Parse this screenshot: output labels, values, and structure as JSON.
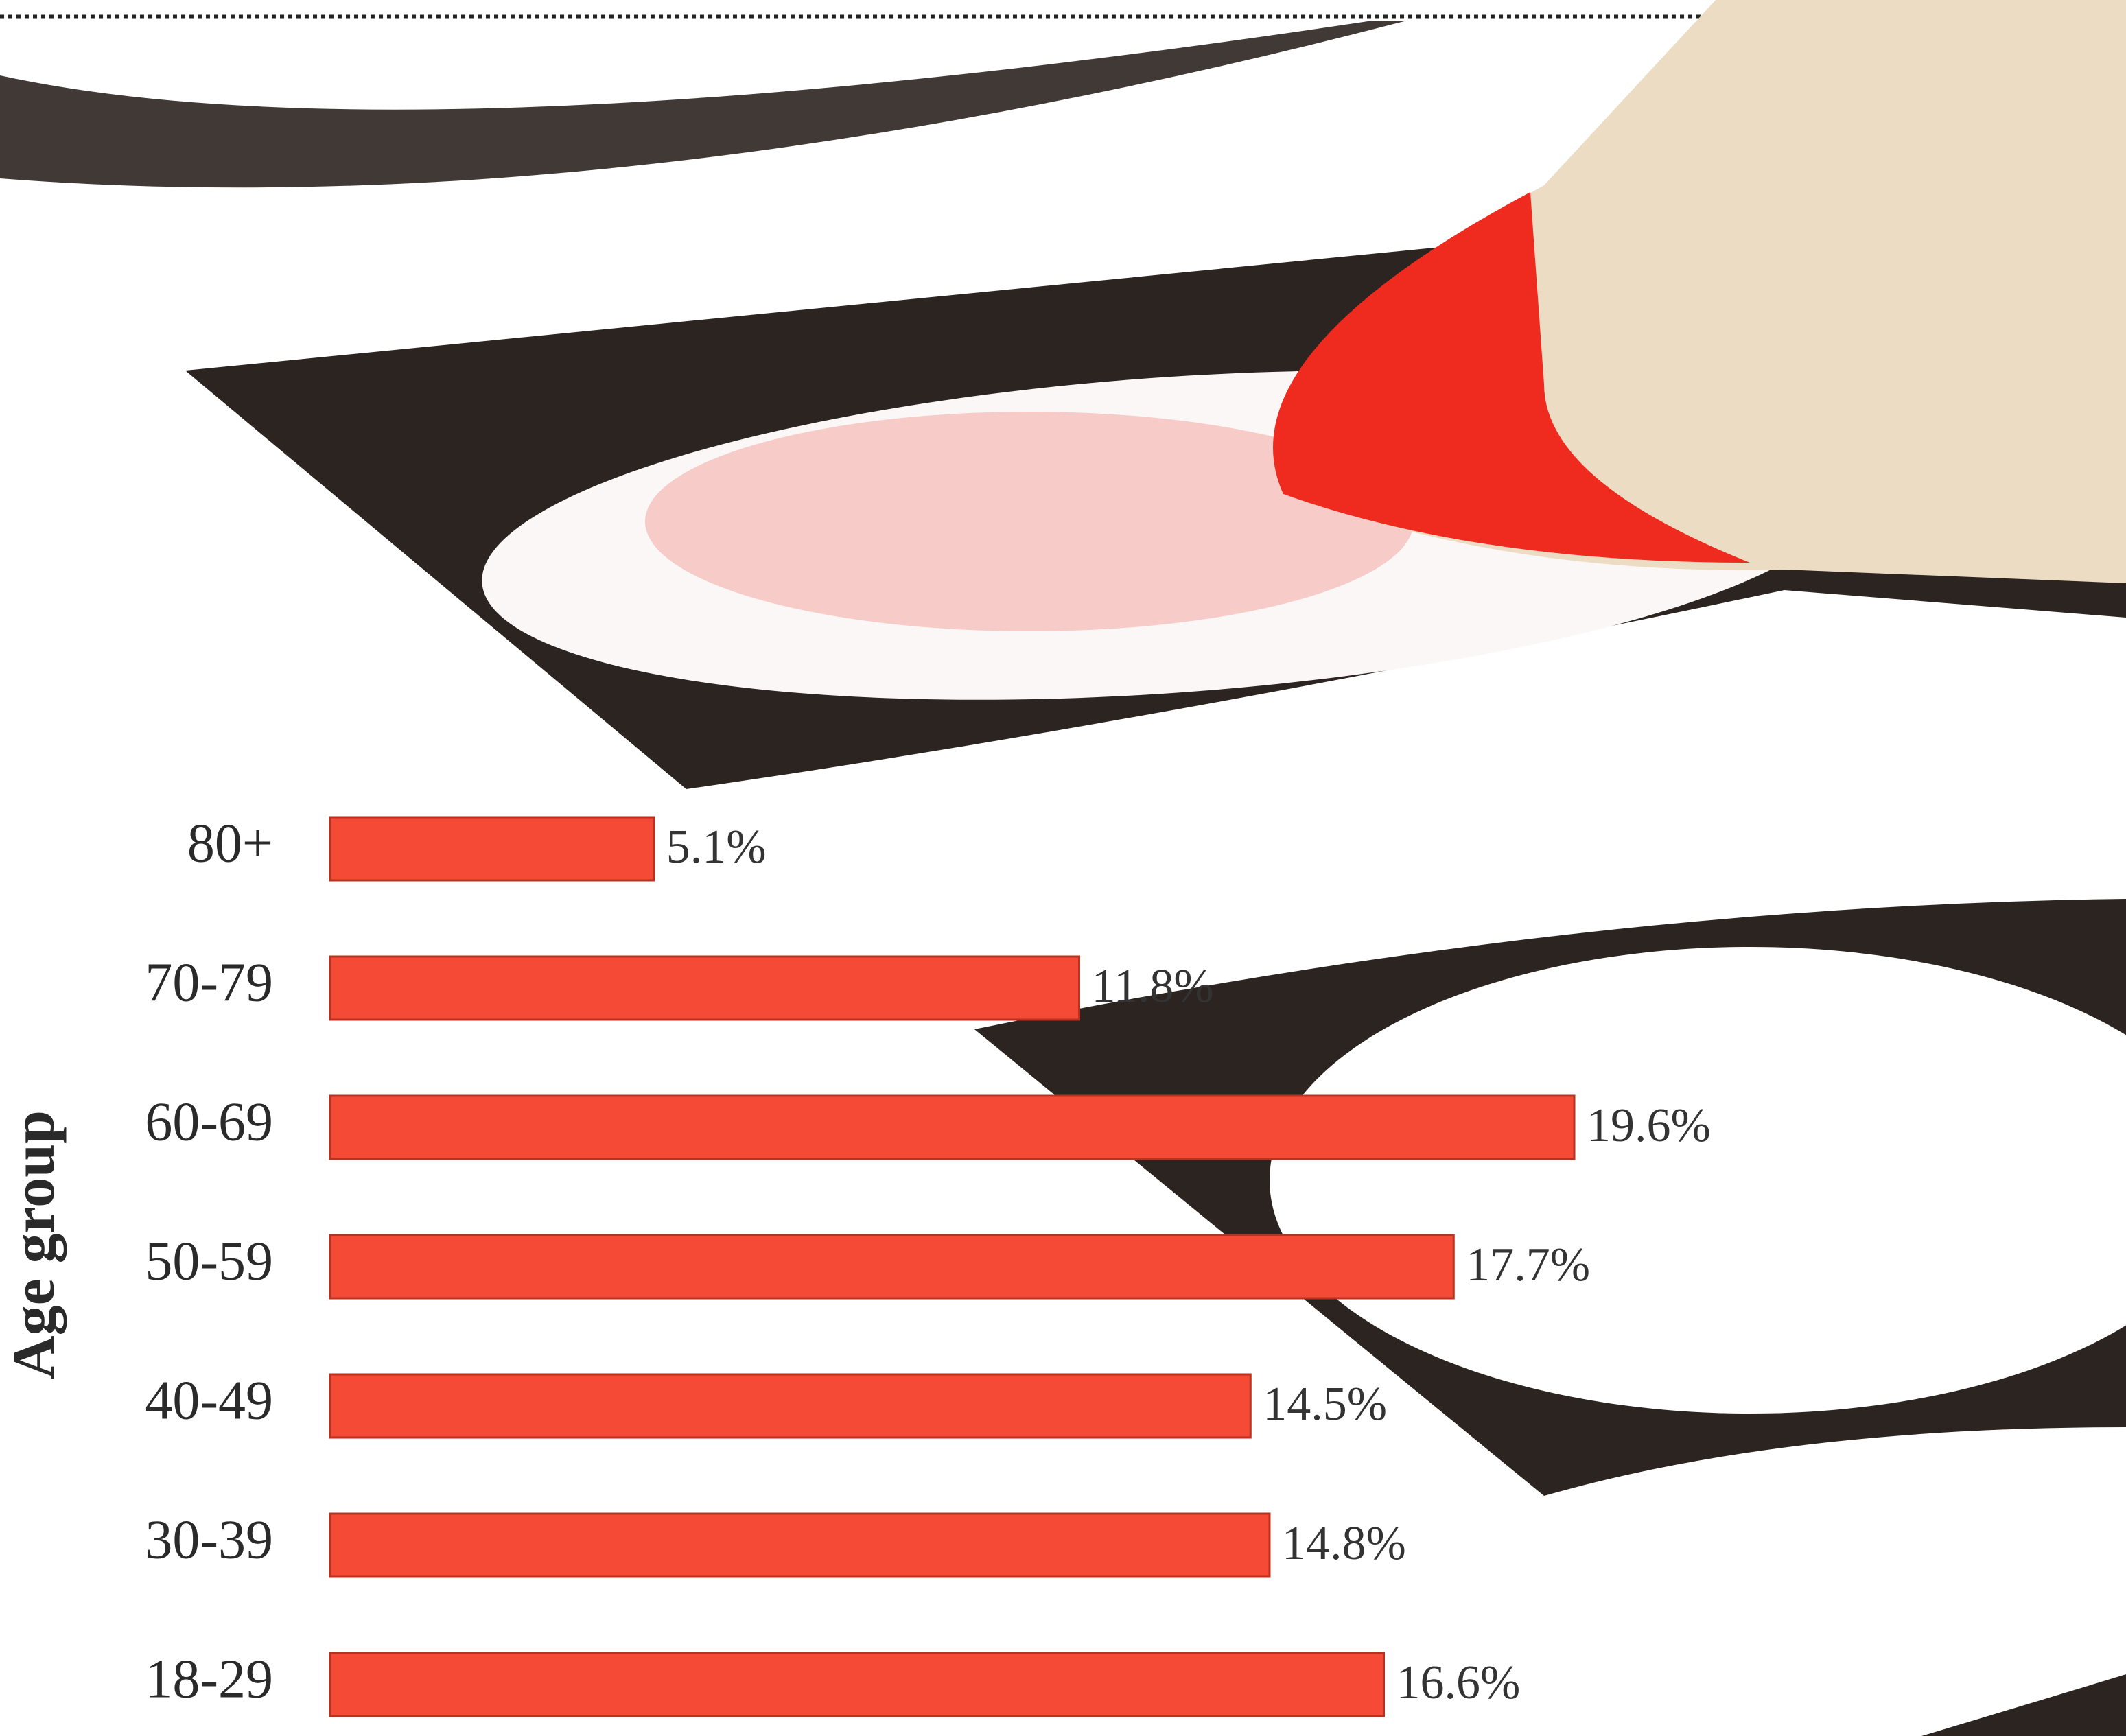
{
  "chart_data": {
    "type": "bar",
    "orientation": "horizontal",
    "y_label": "Age group",
    "categories": [
      "80+",
      "70-79",
      "60-69",
      "50-59",
      "40-49",
      "30-39",
      "18-29"
    ],
    "values": [
      5.1,
      11.8,
      19.6,
      17.7,
      14.5,
      14.8,
      16.6
    ],
    "value_labels": [
      "5.1%",
      "11.8%",
      "19.6%",
      "17.7%",
      "14.5%",
      "14.8%",
      "16.6%"
    ],
    "color": "#f44a36"
  }
}
